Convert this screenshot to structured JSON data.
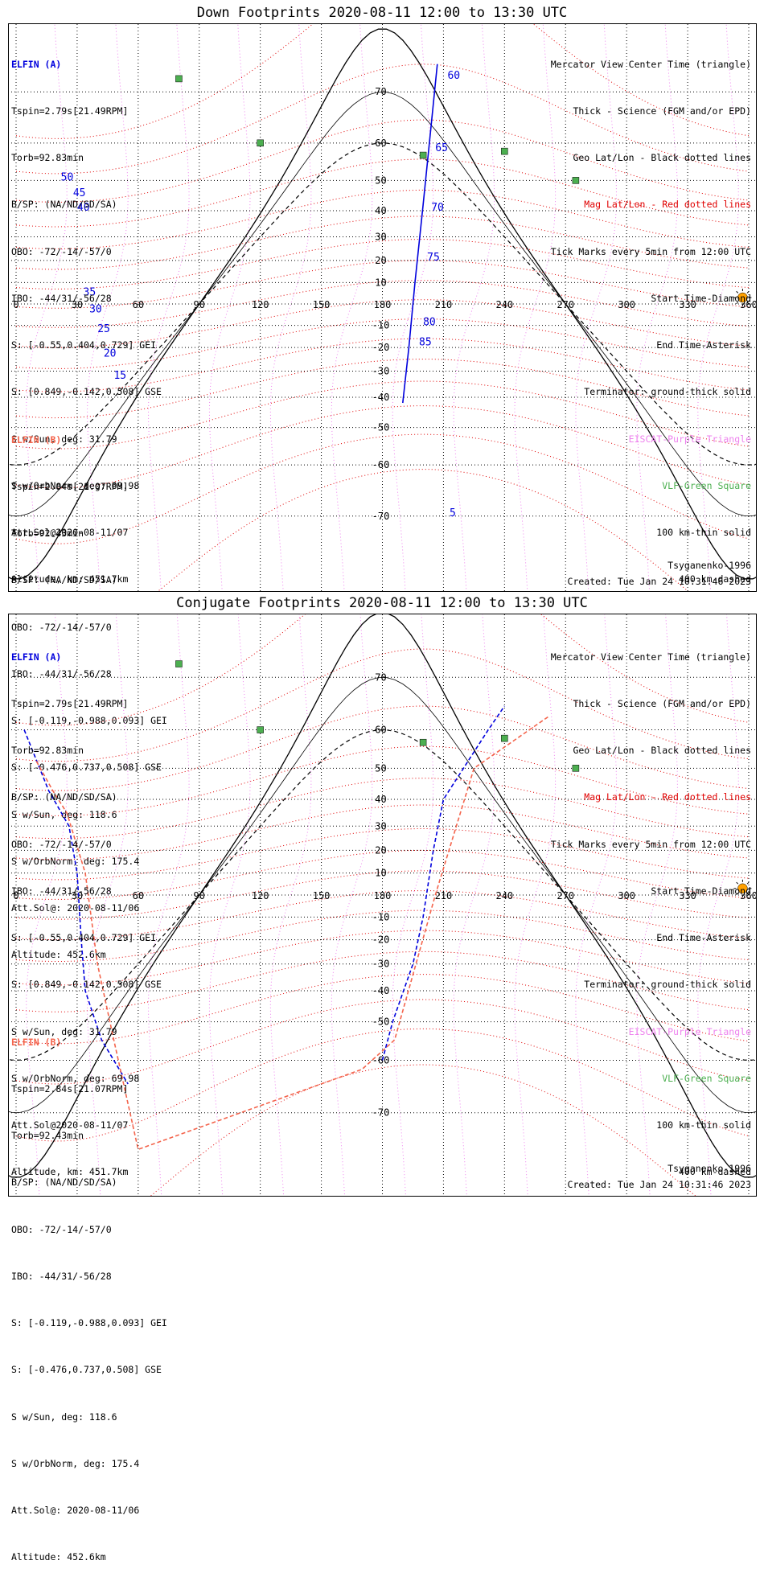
{
  "colors": {
    "elfin_a": "#0000dd",
    "elfin_b": "#f4644c",
    "mag_grid": "#e00000",
    "geo_grid": "#000000",
    "eiscat": "#ee82ee",
    "vlf": "#4caf50",
    "sun": "#ffa000",
    "coast": "#b0b0b0"
  },
  "panels": [
    {
      "title": "Down Footprints 2020-08-11 12:00 to 13:30 UTC",
      "elfin_a": {
        "name": "ELFIN (A)",
        "lines": [
          "Tspin=2.79s[21.49RPM]",
          "Torb=92.83min",
          "B/SP: (NA/ND/SD/SA)",
          "OBO: -72/-14/-57/0",
          "IBO: -44/31/-56/28",
          "S: [-0.55,0.404,0.729] GEI",
          "S: [0.849,-0.142,0.508] GSE",
          "S w/Sun, deg: 31.79",
          "S w/OrbNorm, deg: 69.98",
          "Att.Sol@2020-08-11/07",
          "Altitude, km: 451.7km"
        ]
      },
      "elfin_b": {
        "name": "ELFIN (B)",
        "lines": [
          "Tspin=2.84s[21.07RPM]",
          "Torb=92.43min",
          "B/SP: (NA/ND/SD/SA)",
          "OBO: -72/-14/-57/0",
          "IBO: -44/31/-56/28",
          "S: [-0.119,-0.988,0.093] GEI",
          "S: [-0.476,0.737,0.508] GSE",
          "S w/Sun, deg: 118.6",
          "S w/OrbNorm, deg: 175.4",
          "Att.Sol@: 2020-08-11/06",
          "Altitude: 452.6km"
        ]
      },
      "legend": [
        {
          "text": "Mercator View Center Time (triangle)",
          "color": "#000000"
        },
        {
          "text": "Thick - Science (FGM and/or EPD)",
          "color": "#000000"
        },
        {
          "text": "Geo Lat/Lon - Black dotted lines",
          "color": "#000000"
        },
        {
          "text": "Mag Lat/Lon - Red dotted lines",
          "color": "#e00000"
        },
        {
          "text": "Tick Marks every 5min from 12:00 UTC",
          "color": "#000000"
        },
        {
          "text": "Start Time-Diamond",
          "color": "#000000"
        },
        {
          "text": "End Time-Asterisk",
          "color": "#000000"
        },
        {
          "text": "Terminator: ground-thick solid",
          "color": "#000000"
        },
        {
          "text": "EISCAT-Purple Triangle",
          "color": "#ee82ee"
        },
        {
          "text": "VLF-Green Square",
          "color": "#4caf50"
        },
        {
          "text": "100 km-thin solid",
          "color": "#000000"
        },
        {
          "text": "400 km-dashed",
          "color": "#000000"
        }
      ],
      "model": "Tsyganenko-1996",
      "created": "Created: Tue Jan 24 10:31:46 2023",
      "lon_ticks": [
        "0",
        "30",
        "60",
        "90",
        "120",
        "150",
        "180",
        "210",
        "240",
        "270",
        "300",
        "330",
        "360"
      ],
      "lat_ticks": [
        "70",
        "60",
        "50",
        "40",
        "30",
        "20",
        "10",
        "-10",
        "-20",
        "-30",
        "-40",
        "-50",
        "-60",
        "-70"
      ]
    },
    {
      "title": "Conjugate Footprints 2020-08-11 12:00 to 13:30 UTC",
      "elfin_a": {
        "name": "ELFIN (A)",
        "lines": [
          "Tspin=2.79s[21.49RPM]",
          "Torb=92.83min",
          "B/SP: (NA/ND/SD/SA)",
          "OBO: -72/-14/-57/0",
          "IBO: -44/31/-56/28",
          "S: [-0.55,0.404,0.729] GEI",
          "S: [0.849,-0.142,0.508] GSE",
          "S w/Sun, deg: 31.79",
          "S w/OrbNorm, deg: 69.98",
          "Att.Sol@2020-08-11/07",
          "Altitude, km: 451.7km"
        ]
      },
      "elfin_b": {
        "name": "ELFIN (B)",
        "lines": [
          "Tspin=2.84s[21.07RPM]",
          "Torb=92.43min",
          "B/SP: (NA/ND/SD/SA)",
          "OBO: -72/-14/-57/0",
          "IBO: -44/31/-56/28",
          "S: [-0.119,-0.988,0.093] GEI",
          "S: [-0.476,0.737,0.508] GSE",
          "S w/Sun, deg: 118.6",
          "S w/OrbNorm, deg: 175.4",
          "Att.Sol@: 2020-08-11/06",
          "Altitude: 452.6km"
        ]
      },
      "legend": [
        {
          "text": "Mercator View Center Time (triangle)",
          "color": "#000000"
        },
        {
          "text": "Thick - Science (FGM and/or EPD)",
          "color": "#000000"
        },
        {
          "text": "Geo Lat/Lon - Black dotted lines",
          "color": "#000000"
        },
        {
          "text": "Mag Lat/Lon - Red dotted lines",
          "color": "#e00000"
        },
        {
          "text": "Tick Marks every 5min from 12:00 UTC",
          "color": "#000000"
        },
        {
          "text": "Start Time-Diamond",
          "color": "#000000"
        },
        {
          "text": "End Time-Asterisk",
          "color": "#000000"
        },
        {
          "text": "Terminator: ground-thick solid",
          "color": "#000000"
        },
        {
          "text": "EISCAT-Purple Triangle",
          "color": "#ee82ee"
        },
        {
          "text": "VLF-Green Square",
          "color": "#4caf50"
        },
        {
          "text": "100 km-thin solid",
          "color": "#000000"
        },
        {
          "text": "400 km-dashed",
          "color": "#000000"
        }
      ],
      "model": "Tsyganenko-1996",
      "created": "Created: Tue Jan 24 10:31:46 2023",
      "lon_ticks": [
        "0",
        "30",
        "60",
        "90",
        "120",
        "150",
        "180",
        "210",
        "240",
        "270",
        "300",
        "330",
        "360"
      ],
      "lat_ticks": [
        "70",
        "60",
        "50",
        "40",
        "30",
        "20",
        "10",
        "-10",
        "-20",
        "-30",
        "-40",
        "-50",
        "-60",
        "-70"
      ]
    }
  ],
  "map_data": {
    "projection": "mercator",
    "lon_range": [
      0,
      360
    ],
    "lat_range": [
      -80,
      80
    ],
    "down": {
      "elfin_a_track": [
        [
          17,
          95
        ],
        [
          20,
          75
        ],
        [
          25,
          55
        ],
        [
          28,
          45
        ],
        [
          30,
          40
        ],
        [
          32,
          35
        ],
        [
          35,
          30
        ],
        [
          38,
          25
        ],
        [
          42,
          20
        ],
        [
          46,
          15
        ],
        [
          50,
          5
        ],
        [
          52,
          -5
        ]
      ],
      "elfin_a_ticks": [
        {
          "lon": 22,
          "lat": 50,
          "label": "50"
        },
        {
          "lon": 28,
          "lat": 45,
          "label": "45"
        },
        {
          "lon": 30,
          "lat": 40,
          "label": "40"
        },
        {
          "lon": 33,
          "lat": 4,
          "label": "35"
        },
        {
          "lon": 36,
          "lat": -4,
          "label": "30"
        },
        {
          "lon": 40,
          "lat": -13,
          "label": "25"
        },
        {
          "lon": 43,
          "lat": -24,
          "label": "20"
        },
        {
          "lon": 48,
          "lat": -33,
          "label": "15"
        }
      ],
      "elfin_a2_track": [
        [
          207,
          74
        ],
        [
          204,
          64
        ],
        [
          200,
          42
        ],
        [
          196,
          10
        ],
        [
          193,
          -20
        ],
        [
          190,
          -42
        ]
      ],
      "elfin_a2_ticks": [
        {
          "lon": 212,
          "lat": 72,
          "label": "60"
        },
        {
          "lon": 206,
          "lat": 58,
          "label": "65"
        },
        {
          "lon": 204,
          "lat": 40,
          "label": "70"
        },
        {
          "lon": 202,
          "lat": 20,
          "label": "75"
        },
        {
          "lon": 200,
          "lat": -10,
          "label": "80"
        },
        {
          "lon": 198,
          "lat": -19,
          "label": "85"
        },
        {
          "lon": 213,
          "lat": -70,
          "label": "5"
        }
      ],
      "elfin_b_track": [
        [
          14,
          95
        ],
        [
          20,
          66
        ],
        [
          28,
          25
        ],
        [
          35,
          -60
        ],
        [
          193,
          -80
        ],
        [
          200,
          -40
        ],
        [
          207,
          0
        ],
        [
          214,
          40
        ],
        [
          222,
          72
        ]
      ]
    },
    "conjugate": {
      "elfin_a_track": [
        [
          4,
          60
        ],
        [
          16,
          43
        ],
        [
          26,
          30
        ],
        [
          30,
          10
        ],
        [
          32,
          -20
        ],
        [
          34,
          -40
        ],
        [
          42,
          -55
        ],
        [
          55,
          -65
        ]
      ],
      "elfin_a2_track": [
        [
          180,
          -60
        ],
        [
          185,
          -50
        ],
        [
          195,
          -30
        ],
        [
          200,
          -10
        ],
        [
          205,
          20
        ],
        [
          210,
          40
        ],
        [
          232,
          60
        ],
        [
          240,
          65
        ]
      ],
      "elfin_b_track": [
        [
          10,
          52
        ],
        [
          18,
          43
        ],
        [
          25,
          35
        ],
        [
          34,
          10
        ],
        [
          40,
          -30
        ],
        [
          48,
          -55
        ],
        [
          60,
          -75
        ],
        [
          170,
          -62
        ],
        [
          186,
          -55
        ],
        [
          206,
          0
        ],
        [
          225,
          50
        ],
        [
          262,
          63
        ]
      ]
    }
  }
}
